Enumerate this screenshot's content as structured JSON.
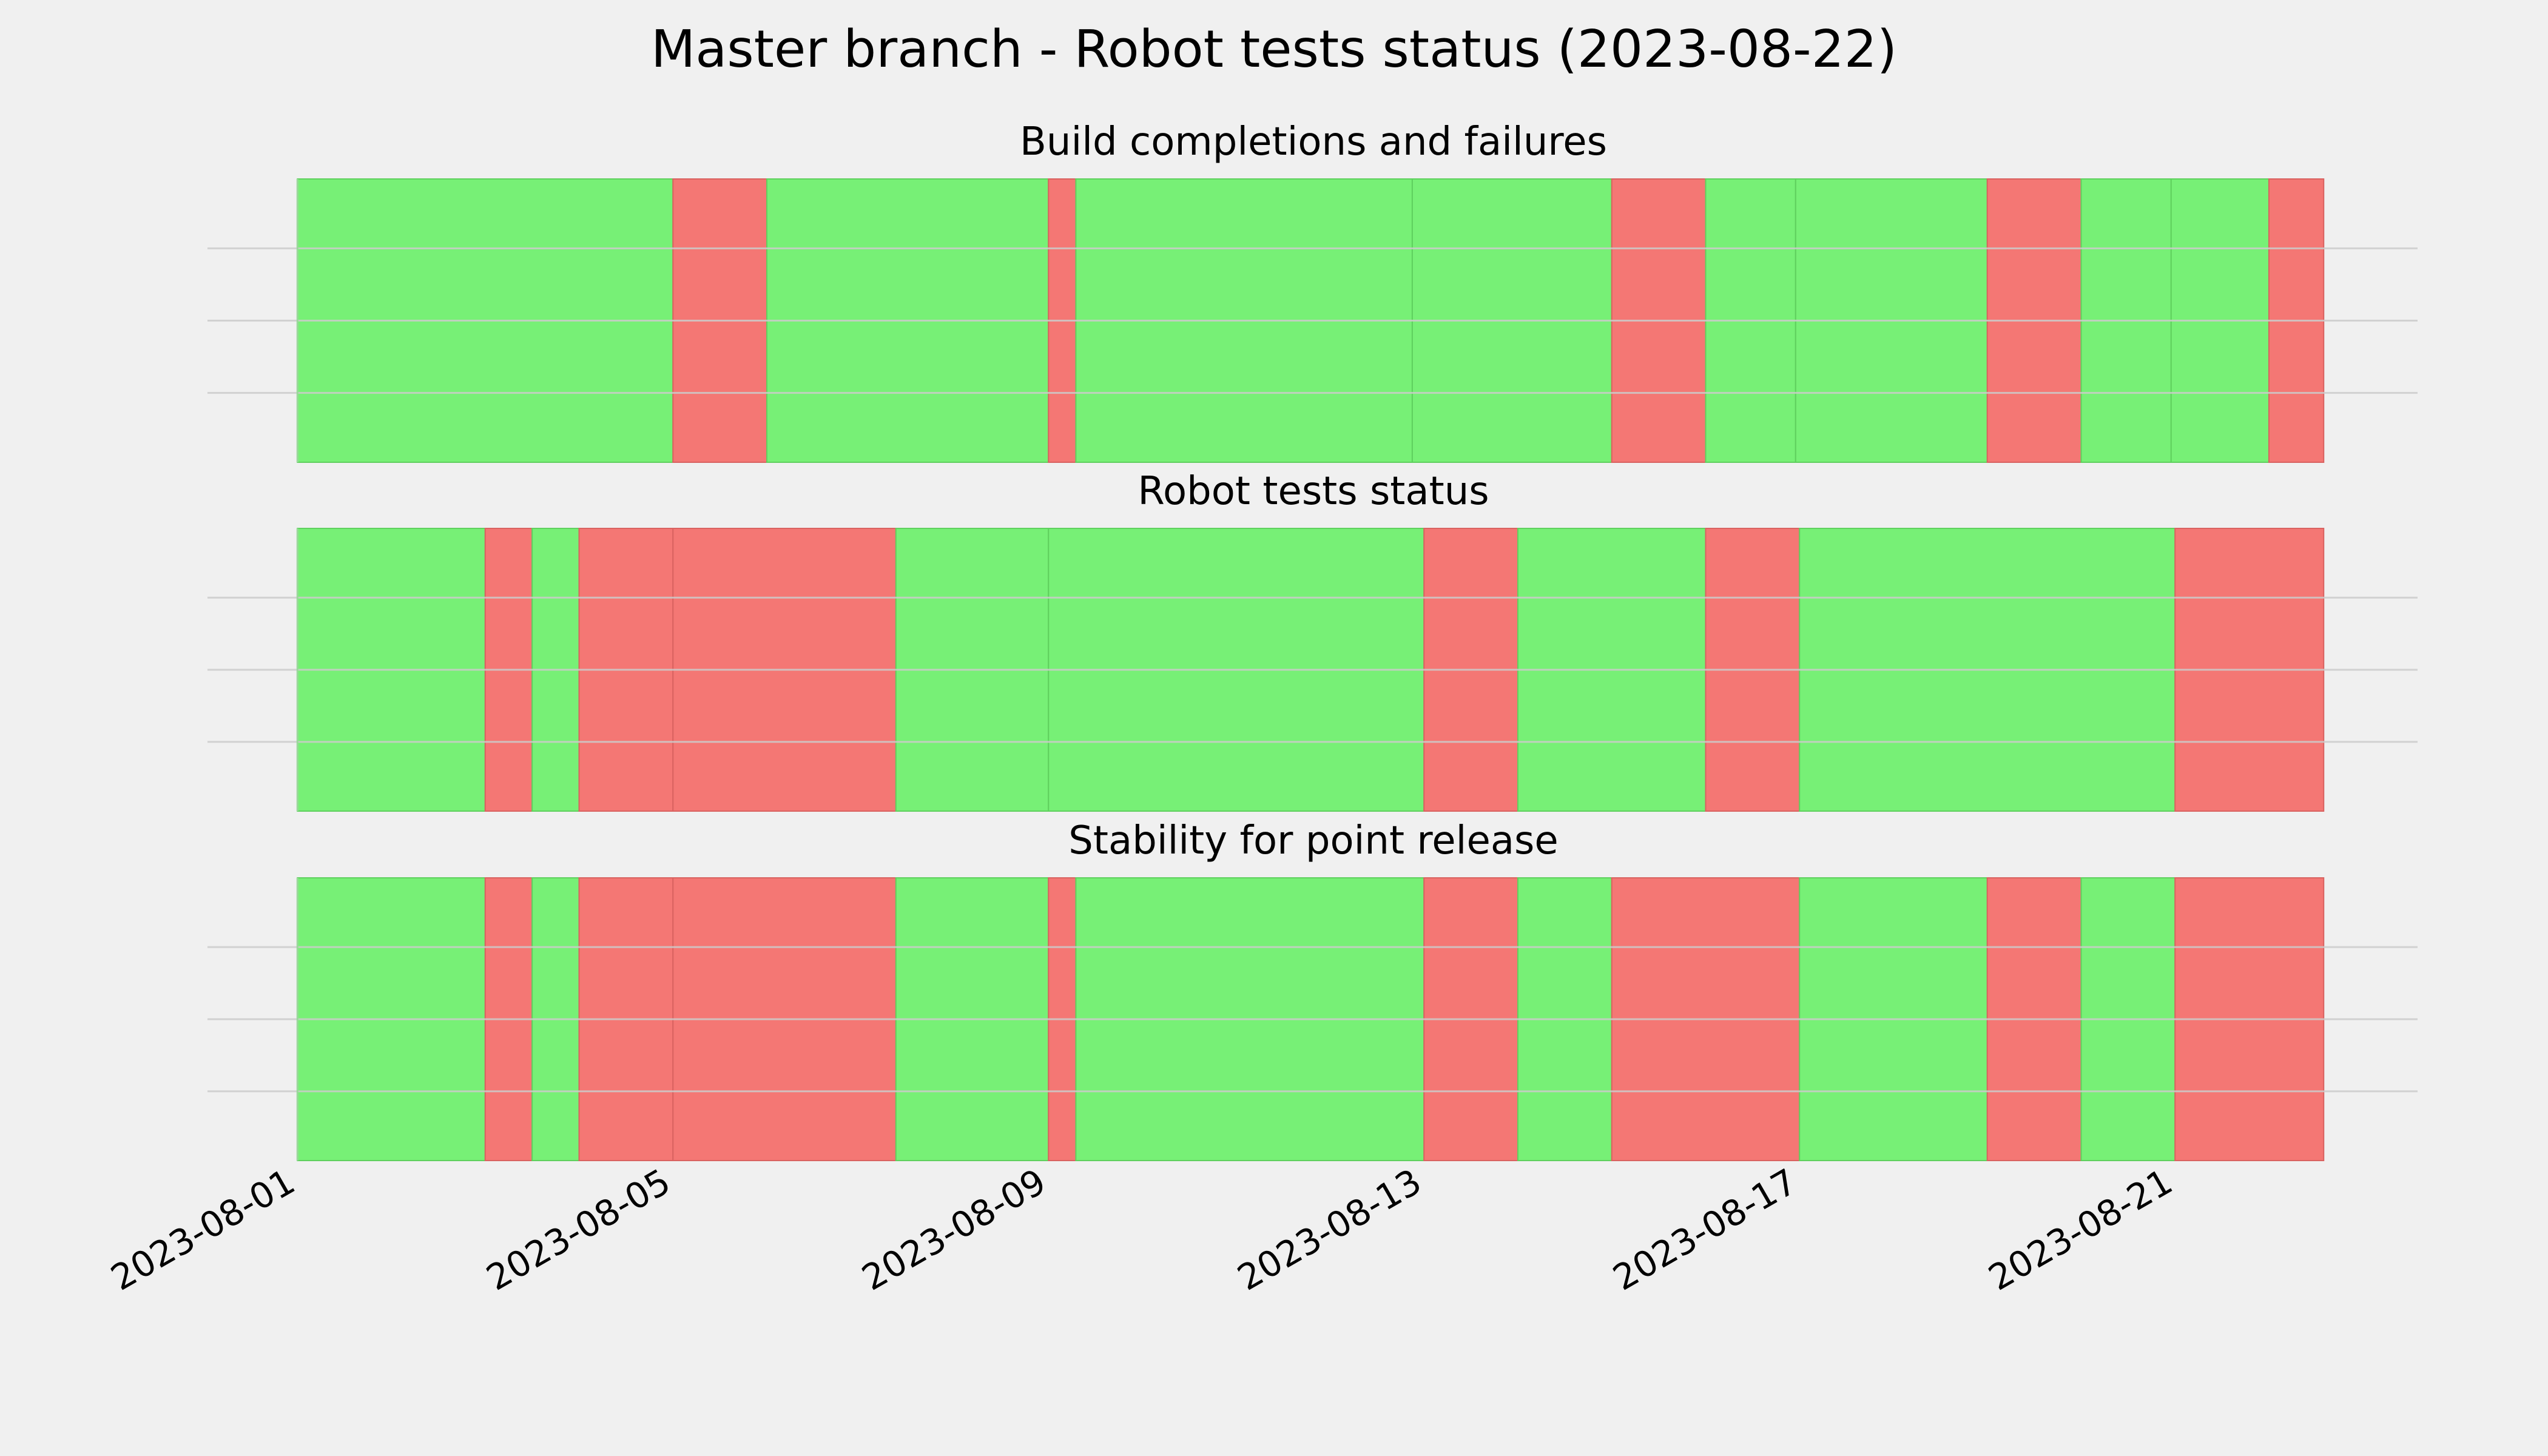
{
  "title": "Master branch - Robot tests status (2023-08-22)",
  "colors": {
    "background": "#f0f0f0",
    "success": "#77f076",
    "failure": "#f47774",
    "grid": "#cbcbcb"
  },
  "chart_data": {
    "type": "timeline",
    "x_start": "2023-08-01",
    "x_end": "2023-08-22",
    "xlim": [
      "2023-07-31T01:00",
      "2023-08-23T14:00"
    ],
    "x_ticks": [
      "2023-08-01",
      "2023-08-05",
      "2023-08-09",
      "2023-08-13",
      "2023-08-17",
      "2023-08-21"
    ],
    "grid": true,
    "panels": [
      {
        "title": "Build completions and failures",
        "segments": [
          {
            "start": "2023-08-01T00:00",
            "end": "2023-08-05T00:00",
            "status": "success"
          },
          {
            "start": "2023-08-05T00:00",
            "end": "2023-08-06T00:00",
            "status": "failure"
          },
          {
            "start": "2023-08-06T00:00",
            "end": "2023-08-09T00:00",
            "status": "success"
          },
          {
            "start": "2023-08-09T00:00",
            "end": "2023-08-09T07:00",
            "status": "failure"
          },
          {
            "start": "2023-08-09T07:00",
            "end": "2023-08-12T21:00",
            "status": "success"
          },
          {
            "start": "2023-08-12T21:00",
            "end": "2023-08-15T00:00",
            "status": "success"
          },
          {
            "start": "2023-08-15T00:00",
            "end": "2023-08-16T00:00",
            "status": "failure"
          },
          {
            "start": "2023-08-16T00:00",
            "end": "2023-08-16T23:00",
            "status": "success"
          },
          {
            "start": "2023-08-16T23:00",
            "end": "2023-08-19T00:00",
            "status": "success"
          },
          {
            "start": "2023-08-19T00:00",
            "end": "2023-08-20T00:00",
            "status": "failure"
          },
          {
            "start": "2023-08-20T00:00",
            "end": "2023-08-20T23:00",
            "status": "success"
          },
          {
            "start": "2023-08-20T23:00",
            "end": "2023-08-22T00:00",
            "status": "success"
          },
          {
            "start": "2023-08-22T00:00",
            "end": "2023-08-22T14:00",
            "status": "failure"
          }
        ]
      },
      {
        "title": "Robot tests status",
        "segments": [
          {
            "start": "2023-08-01T00:00",
            "end": "2023-08-03T00:00",
            "status": "success"
          },
          {
            "start": "2023-08-03T00:00",
            "end": "2023-08-03T12:00",
            "status": "failure"
          },
          {
            "start": "2023-08-03T12:00",
            "end": "2023-08-04T00:00",
            "status": "success"
          },
          {
            "start": "2023-08-04T00:00",
            "end": "2023-08-05T00:00",
            "status": "failure"
          },
          {
            "start": "2023-08-05T00:00",
            "end": "2023-08-07T09:00",
            "status": "failure"
          },
          {
            "start": "2023-08-07T09:00",
            "end": "2023-08-09T00:00",
            "status": "success"
          },
          {
            "start": "2023-08-09T00:00",
            "end": "2023-08-13T00:00",
            "status": "success"
          },
          {
            "start": "2023-08-13T00:00",
            "end": "2023-08-14T00:00",
            "status": "failure"
          },
          {
            "start": "2023-08-14T00:00",
            "end": "2023-08-16T00:00",
            "status": "success"
          },
          {
            "start": "2023-08-16T00:00",
            "end": "2023-08-17T00:00",
            "status": "failure"
          },
          {
            "start": "2023-08-17T00:00",
            "end": "2023-08-21T00:00",
            "status": "success"
          },
          {
            "start": "2023-08-21T00:00",
            "end": "2023-08-22T14:00",
            "status": "failure"
          }
        ]
      },
      {
        "title": "Stability for point release",
        "segments": [
          {
            "start": "2023-08-01T00:00",
            "end": "2023-08-03T00:00",
            "status": "success"
          },
          {
            "start": "2023-08-03T00:00",
            "end": "2023-08-03T12:00",
            "status": "failure"
          },
          {
            "start": "2023-08-03T12:00",
            "end": "2023-08-04T00:00",
            "status": "success"
          },
          {
            "start": "2023-08-04T00:00",
            "end": "2023-08-05T00:00",
            "status": "failure"
          },
          {
            "start": "2023-08-05T00:00",
            "end": "2023-08-07T09:00",
            "status": "failure"
          },
          {
            "start": "2023-08-07T09:00",
            "end": "2023-08-09T00:00",
            "status": "success"
          },
          {
            "start": "2023-08-09T00:00",
            "end": "2023-08-09T07:00",
            "status": "failure"
          },
          {
            "start": "2023-08-09T07:00",
            "end": "2023-08-13T00:00",
            "status": "success"
          },
          {
            "start": "2023-08-13T00:00",
            "end": "2023-08-14T00:00",
            "status": "failure"
          },
          {
            "start": "2023-08-14T00:00",
            "end": "2023-08-15T00:00",
            "status": "success"
          },
          {
            "start": "2023-08-15T00:00",
            "end": "2023-08-17T00:00",
            "status": "failure"
          },
          {
            "start": "2023-08-17T00:00",
            "end": "2023-08-19T00:00",
            "status": "success"
          },
          {
            "start": "2023-08-19T00:00",
            "end": "2023-08-20T00:00",
            "status": "failure"
          },
          {
            "start": "2023-08-20T00:00",
            "end": "2023-08-21T00:00",
            "status": "success"
          },
          {
            "start": "2023-08-21T00:00",
            "end": "2023-08-22T14:00",
            "status": "failure"
          }
        ]
      }
    ]
  }
}
